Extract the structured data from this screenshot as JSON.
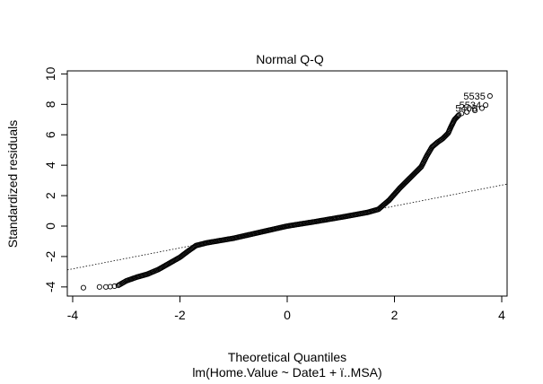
{
  "chart_data": {
    "type": "scatter",
    "title": "Normal Q-Q",
    "xlabel": "Theoretical Quantiles",
    "subtitle": "lm(Home.Value ~ Date1 + ï..MSA)",
    "ylabel": "Standardized residuals",
    "xlim": [
      -4.1,
      4.1
    ],
    "ylim": [
      -4.6,
      10.2
    ],
    "x_ticks": [
      "-4",
      "-2",
      "0",
      "2",
      "4"
    ],
    "y_ticks": [
      "-4",
      "-2",
      "0",
      "2",
      "4",
      "6",
      "8",
      "10"
    ],
    "reference_line": {
      "x": [
        -4.1,
        4.1
      ],
      "y": [
        -2.88,
        2.76
      ]
    },
    "curve_anchors": [
      [
        -3.15,
        -3.9
      ],
      [
        -3.0,
        -3.6
      ],
      [
        -2.8,
        -3.35
      ],
      [
        -2.6,
        -3.15
      ],
      [
        -2.4,
        -2.85
      ],
      [
        -2.2,
        -2.45
      ],
      [
        -2.0,
        -2.05
      ],
      [
        -1.85,
        -1.65
      ],
      [
        -1.7,
        -1.28
      ],
      [
        -1.5,
        -1.1
      ],
      [
        -1.0,
        -0.8
      ],
      [
        -0.5,
        -0.4
      ],
      [
        0.0,
        0.0
      ],
      [
        0.5,
        0.28
      ],
      [
        1.0,
        0.58
      ],
      [
        1.5,
        0.9
      ],
      [
        1.7,
        1.1
      ],
      [
        1.9,
        1.7
      ],
      [
        2.1,
        2.5
      ],
      [
        2.3,
        3.2
      ],
      [
        2.5,
        3.9
      ],
      [
        2.6,
        4.6
      ],
      [
        2.7,
        5.2
      ],
      [
        2.8,
        5.5
      ],
      [
        2.9,
        5.75
      ],
      [
        3.0,
        6.1
      ],
      [
        3.05,
        6.5
      ],
      [
        3.12,
        7.0
      ],
      [
        3.2,
        7.3
      ]
    ],
    "tail_points": [
      [
        -3.8,
        -4.05
      ],
      [
        -3.5,
        -4.0
      ],
      [
        -3.38,
        -4.0
      ],
      [
        -3.3,
        -3.98
      ],
      [
        -3.22,
        -3.95
      ],
      [
        3.25,
        7.4
      ],
      [
        3.35,
        7.5
      ],
      [
        3.5,
        7.6
      ]
    ],
    "labeled_points": [
      {
        "label": "5535",
        "x": 3.78,
        "y": 8.55
      },
      {
        "label": "5534",
        "x": 3.7,
        "y": 7.95
      },
      {
        "label": "5400",
        "x": 3.63,
        "y": 7.75
      }
    ]
  }
}
